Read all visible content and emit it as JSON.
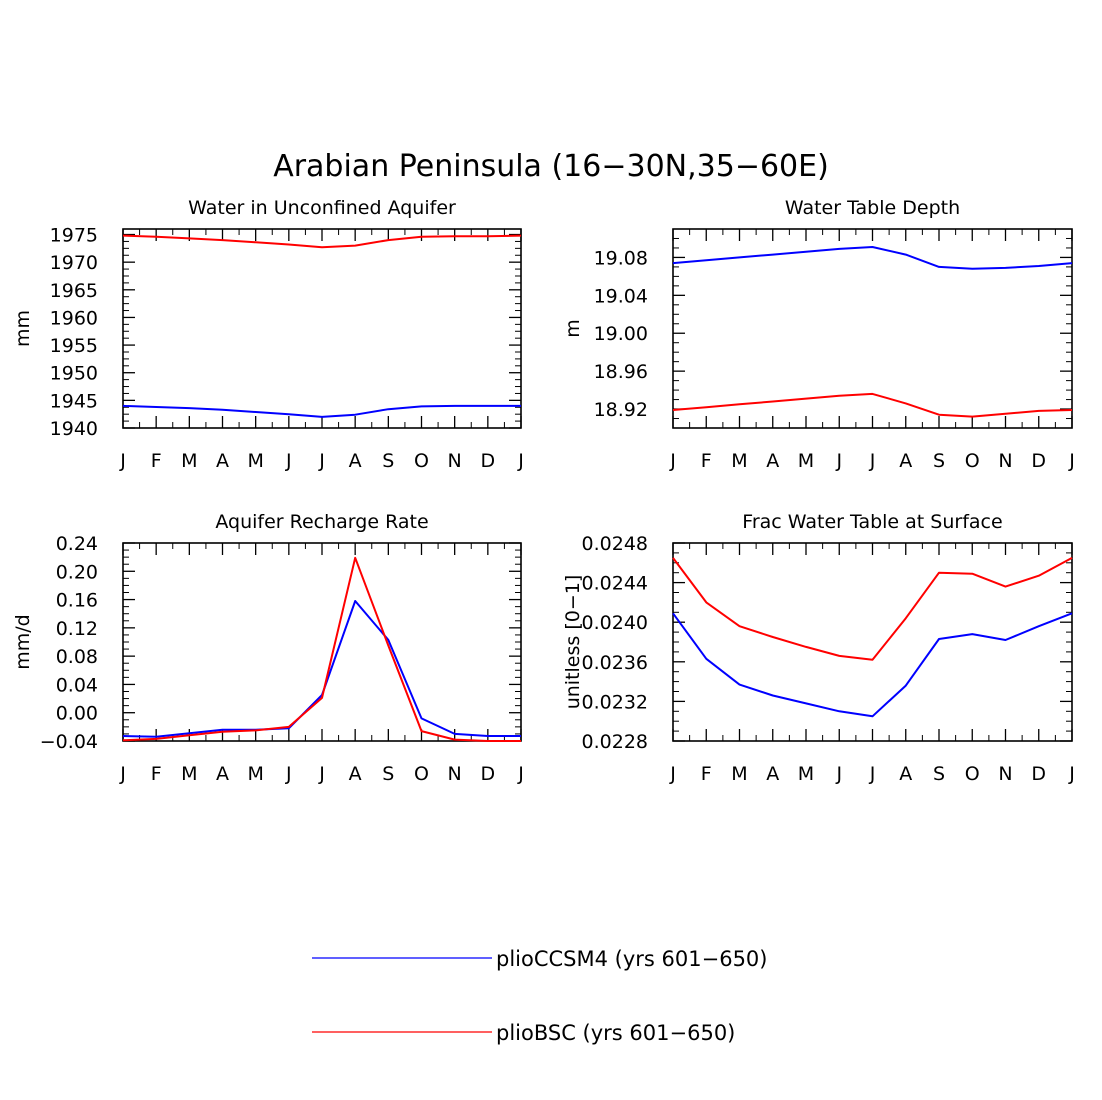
{
  "figure": {
    "title": "Arabian Peninsula (16−30N,35−60E)"
  },
  "legend": {
    "entries": [
      {
        "label": "plioCCSM4 (yrs 601−650)",
        "color": "#0000ff"
      },
      {
        "label": "plioBSC (yrs 601−650)",
        "color": "#ff0000"
      }
    ]
  },
  "chart_data": [
    {
      "type": "line",
      "title": "Water in Unconfined Aquifer",
      "xlabel": "",
      "ylabel": "mm",
      "categories": [
        "J",
        "F",
        "M",
        "A",
        "M",
        "J",
        "J",
        "A",
        "S",
        "O",
        "N",
        "D",
        "J"
      ],
      "ylim": [
        1940,
        1976
      ],
      "yticks": [
        1940,
        1945,
        1950,
        1955,
        1960,
        1965,
        1970,
        1975
      ],
      "ytick_labels": [
        "1940",
        "1945",
        "1950",
        "1955",
        "1960",
        "1965",
        "1970",
        "1975"
      ],
      "grid": false,
      "legend": "bottom-center",
      "series": [
        {
          "name": "plioCCSM4 (yrs 601−650)",
          "color": "#0000ff",
          "values": [
            1944.0,
            1943.8,
            1943.6,
            1943.3,
            1942.9,
            1942.5,
            1942.0,
            1942.4,
            1943.4,
            1943.9,
            1944.0,
            1944.0,
            1944.0
          ]
        },
        {
          "name": "plioBSC (yrs 601−650)",
          "color": "#ff0000",
          "values": [
            1974.8,
            1974.6,
            1974.3,
            1974.0,
            1973.6,
            1973.2,
            1972.7,
            1973.0,
            1974.0,
            1974.6,
            1974.7,
            1974.7,
            1974.8
          ]
        }
      ]
    },
    {
      "type": "line",
      "title": "Water Table Depth",
      "xlabel": "",
      "ylabel": "m",
      "categories": [
        "J",
        "F",
        "M",
        "A",
        "M",
        "J",
        "J",
        "A",
        "S",
        "O",
        "N",
        "D",
        "J"
      ],
      "ylim": [
        18.9,
        19.11
      ],
      "yticks": [
        18.92,
        18.96,
        19.0,
        19.04,
        19.08
      ],
      "ytick_labels": [
        "18.92",
        "18.96",
        "19.00",
        "19.04",
        "19.08"
      ],
      "grid": false,
      "legend": "bottom-center",
      "series": [
        {
          "name": "plioCCSM4 (yrs 601−650)",
          "color": "#0000ff",
          "values": [
            19.074,
            19.077,
            19.08,
            19.083,
            19.086,
            19.089,
            19.091,
            19.083,
            19.07,
            19.068,
            19.069,
            19.071,
            19.074
          ]
        },
        {
          "name": "plioBSC (yrs 601−650)",
          "color": "#ff0000",
          "values": [
            18.919,
            18.922,
            18.925,
            18.928,
            18.931,
            18.934,
            18.936,
            18.926,
            18.914,
            18.912,
            18.915,
            18.918,
            18.919
          ]
        }
      ]
    },
    {
      "type": "line",
      "title": "Aquifer Recharge Rate",
      "xlabel": "",
      "ylabel": "mm/d",
      "categories": [
        "J",
        "F",
        "M",
        "A",
        "M",
        "J",
        "J",
        "A",
        "S",
        "O",
        "N",
        "D",
        "J"
      ],
      "ylim": [
        -0.04,
        0.24
      ],
      "yticks": [
        -0.04,
        0.0,
        0.04,
        0.08,
        0.12,
        0.16,
        0.2,
        0.24
      ],
      "ytick_labels": [
        "−0.04",
        "0.00",
        "0.04",
        "0.08",
        "0.12",
        "0.16",
        "0.20",
        "0.24"
      ],
      "grid": false,
      "legend": "bottom-center",
      "series": [
        {
          "name": "plioCCSM4 (yrs 601−650)",
          "color": "#0000ff",
          "values": [
            -0.033,
            -0.034,
            -0.029,
            -0.024,
            -0.024,
            -0.022,
            0.025,
            0.158,
            0.103,
            -0.008,
            -0.03,
            -0.033,
            -0.033
          ]
        },
        {
          "name": "plioBSC (yrs 601−650)",
          "color": "#ff0000",
          "values": [
            -0.039,
            -0.037,
            -0.032,
            -0.027,
            -0.025,
            -0.02,
            0.021,
            0.219,
            0.095,
            -0.026,
            -0.038,
            -0.04,
            -0.04
          ]
        }
      ]
    },
    {
      "type": "line",
      "title": "Frac Water Table at Surface",
      "xlabel": "",
      "ylabel": "unitless [0−1]",
      "categories": [
        "J",
        "F",
        "M",
        "A",
        "M",
        "J",
        "J",
        "A",
        "S",
        "O",
        "N",
        "D",
        "J"
      ],
      "ylim": [
        0.0228,
        0.0248
      ],
      "yticks": [
        0.0228,
        0.0232,
        0.0236,
        0.024,
        0.0244,
        0.0248
      ],
      "ytick_labels": [
        "0.0228",
        "0.0232",
        "0.0236",
        "0.0240",
        "0.0244",
        "0.0248"
      ],
      "grid": false,
      "legend": "bottom-center",
      "series": [
        {
          "name": "plioCCSM4 (yrs 601−650)",
          "color": "#0000ff",
          "values": [
            0.02409,
            0.02363,
            0.02337,
            0.02326,
            0.02318,
            0.0231,
            0.02305,
            0.02336,
            0.02383,
            0.02388,
            0.02382,
            0.02396,
            0.02409
          ]
        },
        {
          "name": "plioBSC (yrs 601−650)",
          "color": "#ff0000",
          "values": [
            0.02465,
            0.0242,
            0.02396,
            0.02385,
            0.02375,
            0.02366,
            0.02362,
            0.02404,
            0.0245,
            0.02449,
            0.02436,
            0.02447,
            0.02465
          ]
        }
      ]
    }
  ]
}
